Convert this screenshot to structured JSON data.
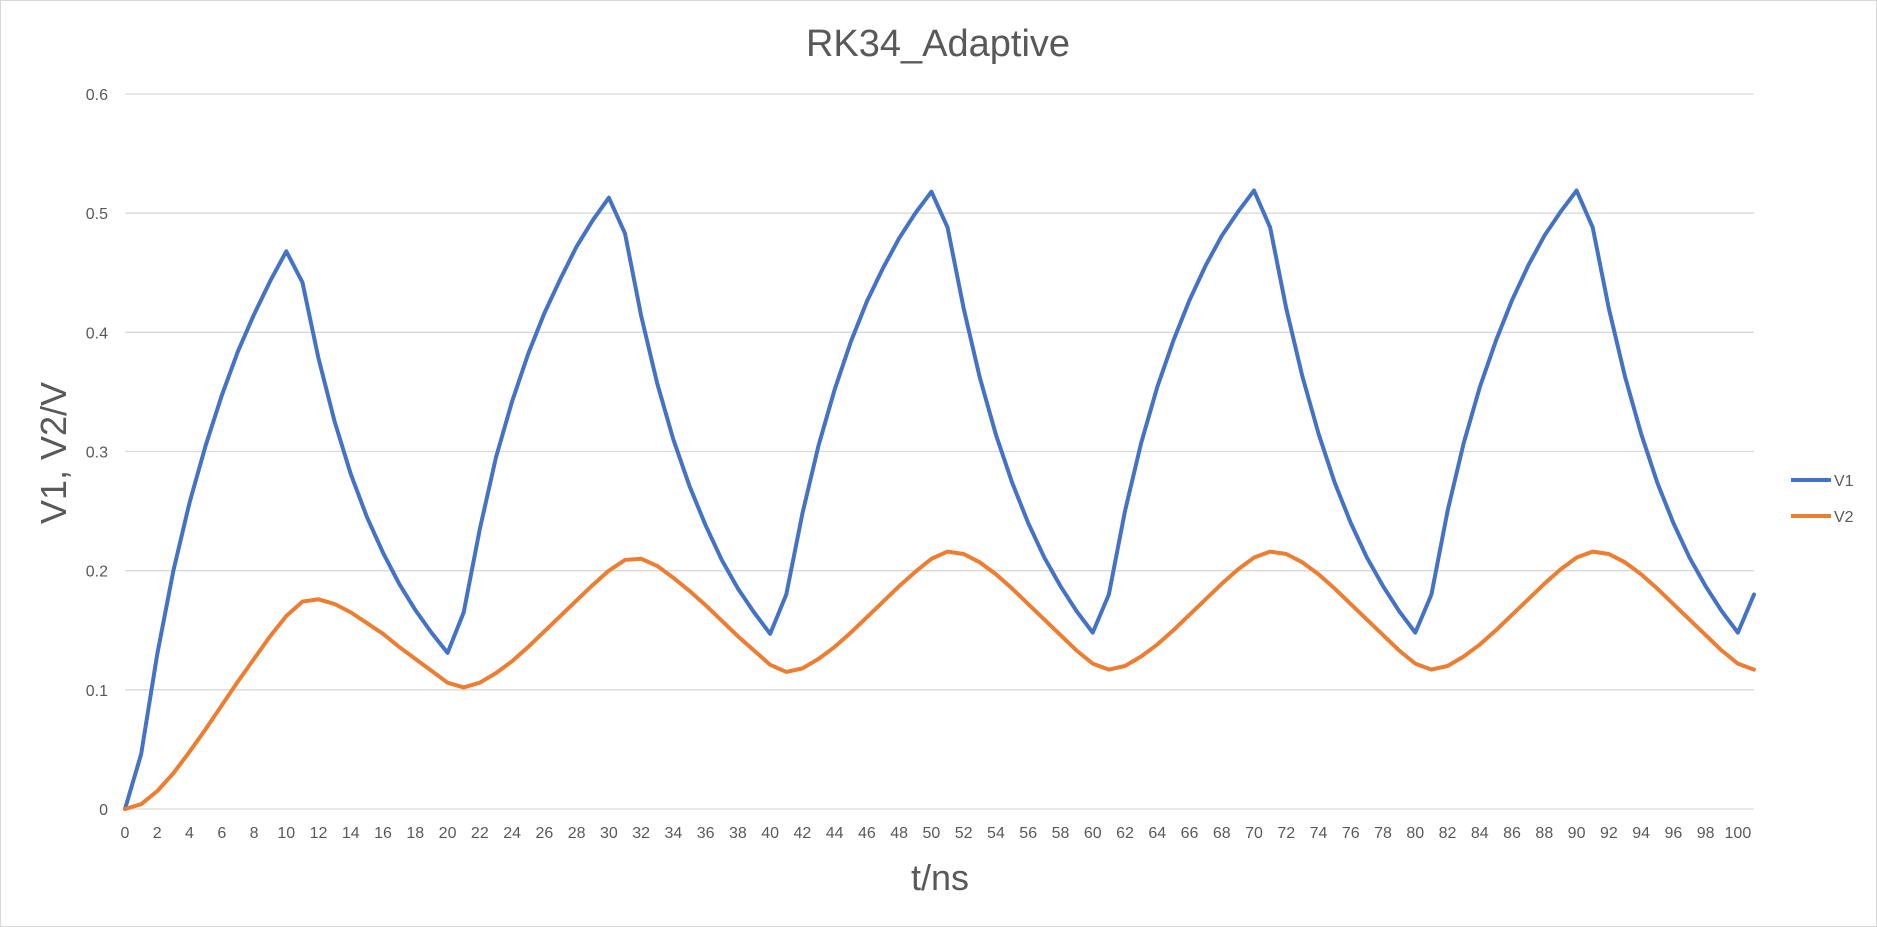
{
  "chart_data": {
    "type": "line",
    "title": "RK34_Adaptive",
    "xlabel": "t/ns",
    "ylabel": "V1, V2/V",
    "xlim": [
      0,
      101
    ],
    "ylim": [
      0,
      0.6
    ],
    "y_ticks": [
      "0",
      "0.1",
      "0.2",
      "0.3",
      "0.4",
      "0.5",
      "0.6"
    ],
    "x_ticks": [
      "0",
      "2",
      "4",
      "6",
      "8",
      "10",
      "12",
      "14",
      "16",
      "18",
      "20",
      "22",
      "24",
      "26",
      "28",
      "30",
      "32",
      "34",
      "36",
      "38",
      "40",
      "42",
      "44",
      "46",
      "48",
      "50",
      "52",
      "54",
      "56",
      "58",
      "60",
      "62",
      "64",
      "66",
      "68",
      "70",
      "72",
      "74",
      "76",
      "78",
      "80",
      "82",
      "84",
      "86",
      "88",
      "90",
      "92",
      "94",
      "96",
      "98",
      "100"
    ],
    "grid": "horizontal",
    "legend_position": "right",
    "x": [
      0,
      1,
      2,
      3,
      4,
      5,
      6,
      7,
      8,
      9,
      10,
      11,
      12,
      13,
      14,
      15,
      16,
      17,
      18,
      19,
      20,
      21,
      22,
      23,
      24,
      25,
      26,
      27,
      28,
      29,
      30,
      31,
      32,
      33,
      34,
      35,
      36,
      37,
      38,
      39,
      40,
      41,
      42,
      43,
      44,
      45,
      46,
      47,
      48,
      49,
      50,
      51,
      52,
      53,
      54,
      55,
      56,
      57,
      58,
      59,
      60,
      61,
      62,
      63,
      64,
      65,
      66,
      67,
      68,
      69,
      70,
      71,
      72,
      73,
      74,
      75,
      76,
      77,
      78,
      79,
      80,
      81,
      82,
      83,
      84,
      85,
      86,
      87,
      88,
      89,
      90,
      91,
      92,
      93,
      94,
      95,
      96,
      97,
      98,
      99,
      100,
      101
    ],
    "series": [
      {
        "name": "V1",
        "color": "#4472C4",
        "values": [
          0,
          0.046,
          0.13,
          0.2,
          0.257,
          0.305,
          0.347,
          0.384,
          0.415,
          0.443,
          0.468,
          0.442,
          0.378,
          0.325,
          0.281,
          0.245,
          0.215,
          0.189,
          0.167,
          0.148,
          0.131,
          0.165,
          0.235,
          0.295,
          0.342,
          0.382,
          0.416,
          0.445,
          0.472,
          0.494,
          0.513,
          0.483,
          0.414,
          0.357,
          0.31,
          0.271,
          0.238,
          0.209,
          0.185,
          0.165,
          0.147,
          0.18,
          0.248,
          0.305,
          0.352,
          0.392,
          0.426,
          0.454,
          0.479,
          0.5,
          0.518,
          0.488,
          0.42,
          0.362,
          0.314,
          0.274,
          0.24,
          0.211,
          0.187,
          0.166,
          0.148,
          0.18,
          0.25,
          0.307,
          0.354,
          0.393,
          0.427,
          0.456,
          0.481,
          0.501,
          0.519,
          0.488,
          0.42,
          0.363,
          0.315,
          0.274,
          0.24,
          0.211,
          0.187,
          0.166,
          0.148,
          0.18,
          0.25,
          0.307,
          0.354,
          0.393,
          0.427,
          0.456,
          0.481,
          0.501,
          0.519,
          0.488,
          0.42,
          0.363,
          0.315,
          0.274,
          0.24,
          0.211,
          0.187,
          0.166,
          0.148,
          0.18
        ]
      },
      {
        "name": "V2",
        "color": "#ED7D31",
        "values": [
          0,
          0.004,
          0.015,
          0.03,
          0.048,
          0.067,
          0.087,
          0.107,
          0.126,
          0.145,
          0.162,
          0.174,
          0.176,
          0.172,
          0.165,
          0.156,
          0.147,
          0.136,
          0.126,
          0.116,
          0.106,
          0.102,
          0.106,
          0.114,
          0.124,
          0.136,
          0.149,
          0.162,
          0.175,
          0.188,
          0.2,
          0.209,
          0.21,
          0.204,
          0.194,
          0.183,
          0.171,
          0.158,
          0.145,
          0.133,
          0.121,
          0.115,
          0.118,
          0.126,
          0.136,
          0.148,
          0.161,
          0.174,
          0.187,
          0.199,
          0.21,
          0.216,
          0.214,
          0.207,
          0.197,
          0.185,
          0.172,
          0.159,
          0.146,
          0.133,
          0.122,
          0.117,
          0.12,
          0.128,
          0.138,
          0.15,
          0.163,
          0.176,
          0.189,
          0.201,
          0.211,
          0.216,
          0.214,
          0.207,
          0.197,
          0.185,
          0.172,
          0.159,
          0.146,
          0.133,
          0.122,
          0.117,
          0.12,
          0.128,
          0.138,
          0.15,
          0.163,
          0.176,
          0.189,
          0.201,
          0.211,
          0.216,
          0.214,
          0.207,
          0.197,
          0.185,
          0.172,
          0.159,
          0.146,
          0.133,
          0.122,
          0.117
        ]
      }
    ]
  }
}
